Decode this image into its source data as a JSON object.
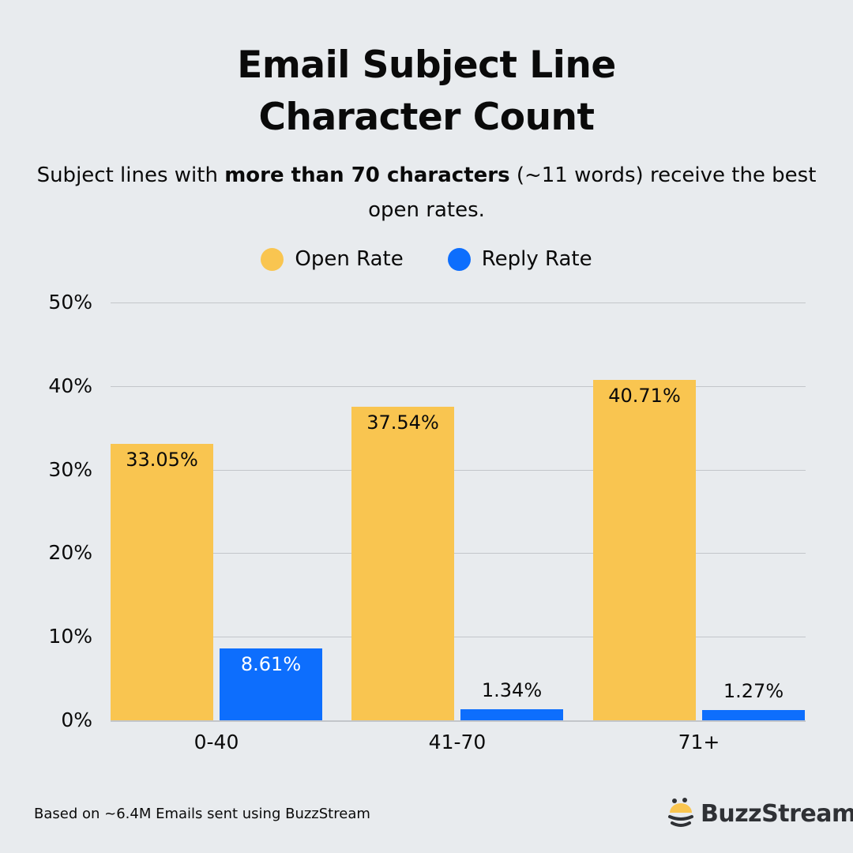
{
  "header": {
    "title_line1": "Email Subject Line",
    "title_line2": "Character Count",
    "subtitle_pre": "Subject lines with ",
    "subtitle_bold": "more than 70 characters",
    "subtitle_post": " (~11 words) receive the best open rates."
  },
  "legend": [
    {
      "label": "Open Rate",
      "color": "#f9c550"
    },
    {
      "label": "Reply Rate",
      "color": "#0d6efd"
    }
  ],
  "footer": {
    "note": "Based on ~6.4M Emails sent using BuzzStream",
    "brand": "BuzzStream"
  },
  "colors": {
    "background": "#e8ebee",
    "open": "#f9c550",
    "reply": "#0d6efd",
    "grid": "#c3c6ca"
  },
  "chart_data": {
    "type": "bar",
    "title": "Email Subject Line Character Count",
    "subtitle": "Subject lines with more than 70 characters (~11 words) receive the best open rates.",
    "categories": [
      "0-40",
      "41-70",
      "71+"
    ],
    "series": [
      {
        "name": "Open Rate",
        "values": [
          33.05,
          37.54,
          40.71
        ],
        "labels": [
          "33.05%",
          "37.54%",
          "40.71%"
        ]
      },
      {
        "name": "Reply Rate",
        "values": [
          8.61,
          1.34,
          1.27
        ],
        "labels": [
          "8.61%",
          "1.34%",
          "1.27%"
        ]
      }
    ],
    "xlabel": "",
    "ylabel": "",
    "ylim": [
      0,
      50
    ],
    "yticks": [
      "0%",
      "10%",
      "20%",
      "30%",
      "40%",
      "50%"
    ],
    "grid": true,
    "legend_position": "top"
  }
}
